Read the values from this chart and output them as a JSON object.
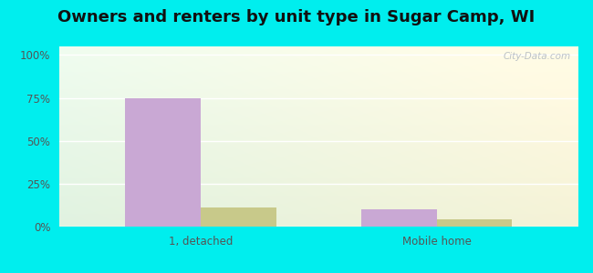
{
  "title": "Owners and renters by unit type in Sugar Camp, WI",
  "categories": [
    "1, detached",
    "Mobile home"
  ],
  "owner_values": [
    75,
    10
  ],
  "renter_values": [
    11,
    4
  ],
  "owner_color": "#c9a8d4",
  "renter_color": "#c8c98a",
  "yticks": [
    0,
    25,
    50,
    75,
    100
  ],
  "ytick_labels": [
    "0%",
    "25%",
    "50%",
    "75%",
    "100%"
  ],
  "ylim": [
    0,
    105
  ],
  "bar_width": 0.32,
  "outer_bg": "#00eeee",
  "watermark": "City-Data.com",
  "title_fontsize": 13,
  "tick_fontsize": 8.5,
  "bg_topleft": [
    0.88,
    0.97,
    0.91
  ],
  "bg_topright": [
    0.94,
    0.97,
    0.88
  ],
  "bg_bottomleft": [
    0.91,
    0.97,
    0.91
  ],
  "bg_bottomright": [
    0.96,
    0.97,
    0.88
  ]
}
